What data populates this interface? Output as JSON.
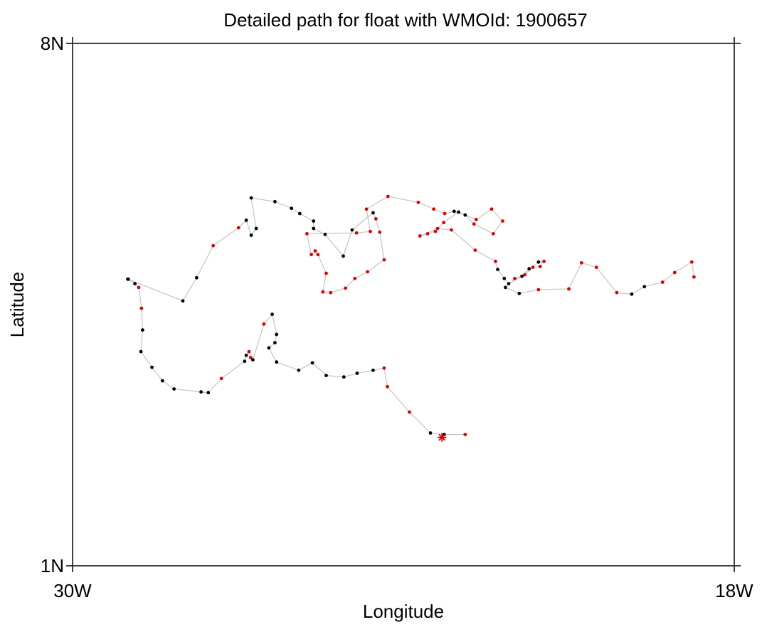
{
  "chart_data": {
    "type": "scatter",
    "title": "Detailed path for float with WMOId: 1900657",
    "xlabel": "Longitude",
    "ylabel": "Latitude",
    "xlim": [
      -30,
      -18
    ],
    "ylim": [
      1,
      8
    ],
    "x_ticks": [
      {
        "value": -30,
        "label": "30W"
      },
      {
        "value": -18,
        "label": "18W"
      }
    ],
    "y_ticks": [
      {
        "value": 8,
        "label": "8N"
      },
      {
        "value": 1,
        "label": "1N"
      }
    ],
    "grid": false,
    "colors": {
      "path_line": "#c8c8c8",
      "point_black": "#000000",
      "point_red": "#e00000",
      "last_position": "#e00000"
    },
    "last_position_marker": "asterisk",
    "series": [
      {
        "values": [
          {
            "lon": -29.0,
            "lat": 4.84,
            "c": "k"
          },
          {
            "lon": -28.87,
            "lat": 4.78,
            "c": "k"
          },
          {
            "lon": -28.8,
            "lat": 4.73,
            "c": "r"
          },
          {
            "lon": -28.75,
            "lat": 4.45,
            "c": "r"
          },
          {
            "lon": -28.73,
            "lat": 4.16,
            "c": "k"
          },
          {
            "lon": -28.76,
            "lat": 3.87,
            "c": "k"
          },
          {
            "lon": -28.56,
            "lat": 3.66,
            "c": "k"
          },
          {
            "lon": -28.37,
            "lat": 3.48,
            "c": "k"
          },
          {
            "lon": -28.16,
            "lat": 3.37,
            "c": "k"
          },
          {
            "lon": -27.67,
            "lat": 3.33,
            "c": "k"
          },
          {
            "lon": -27.54,
            "lat": 3.32,
            "c": "k"
          },
          {
            "lon": -27.3,
            "lat": 3.51,
            "c": "r"
          },
          {
            "lon": -26.88,
            "lat": 3.74,
            "c": "k"
          },
          {
            "lon": -26.85,
            "lat": 3.82,
            "c": "k"
          },
          {
            "lon": -26.8,
            "lat": 3.87,
            "c": "r"
          },
          {
            "lon": -26.77,
            "lat": 3.79,
            "c": "r"
          },
          {
            "lon": -26.73,
            "lat": 3.76,
            "c": "k"
          },
          {
            "lon": -26.53,
            "lat": 4.24,
            "c": "r"
          },
          {
            "lon": -26.38,
            "lat": 4.37,
            "c": "k"
          },
          {
            "lon": -26.3,
            "lat": 4.1,
            "c": "k"
          },
          {
            "lon": -26.33,
            "lat": 3.99,
            "c": "k"
          },
          {
            "lon": -26.44,
            "lat": 3.92,
            "c": "k"
          },
          {
            "lon": -26.3,
            "lat": 3.73,
            "c": "k"
          },
          {
            "lon": -25.9,
            "lat": 3.62,
            "c": "k"
          },
          {
            "lon": -25.65,
            "lat": 3.72,
            "c": "k"
          },
          {
            "lon": -25.4,
            "lat": 3.55,
            "c": "k"
          },
          {
            "lon": -25.08,
            "lat": 3.53,
            "c": "k"
          },
          {
            "lon": -24.84,
            "lat": 3.58,
            "c": "k"
          },
          {
            "lon": -24.55,
            "lat": 3.62,
            "c": "k"
          },
          {
            "lon": -24.35,
            "lat": 3.65,
            "c": "r"
          },
          {
            "lon": -24.29,
            "lat": 3.4,
            "c": "r"
          },
          {
            "lon": -23.89,
            "lat": 3.06,
            "c": "r"
          },
          {
            "lon": -23.51,
            "lat": 2.78,
            "c": "k"
          },
          {
            "lon": -23.26,
            "lat": 2.76,
            "c": "k"
          },
          {
            "lon": -22.88,
            "lat": 2.76,
            "c": "r"
          }
        ]
      },
      {
        "values": [
          {
            "lon": -28.99,
            "lat": 4.84,
            "c": "k"
          },
          {
            "lon": -28.0,
            "lat": 4.55,
            "c": "k"
          },
          {
            "lon": -27.75,
            "lat": 4.86,
            "c": "k"
          },
          {
            "lon": -27.45,
            "lat": 5.29,
            "c": "r"
          },
          {
            "lon": -26.99,
            "lat": 5.53,
            "c": "r"
          },
          {
            "lon": -26.85,
            "lat": 5.63,
            "c": "k"
          },
          {
            "lon": -26.76,
            "lat": 5.43,
            "c": "k"
          },
          {
            "lon": -26.67,
            "lat": 5.52,
            "c": "k"
          },
          {
            "lon": -26.76,
            "lat": 5.93,
            "c": "k"
          },
          {
            "lon": -26.33,
            "lat": 5.88,
            "c": "k"
          },
          {
            "lon": -26.03,
            "lat": 5.79,
            "c": "k"
          },
          {
            "lon": -25.88,
            "lat": 5.72,
            "c": "k"
          },
          {
            "lon": -25.63,
            "lat": 5.62,
            "c": "k"
          },
          {
            "lon": -25.63,
            "lat": 5.52,
            "c": "k"
          },
          {
            "lon": -25.42,
            "lat": 5.44,
            "c": "k"
          },
          {
            "lon": -25.09,
            "lat": 5.15,
            "c": "k"
          },
          {
            "lon": -24.93,
            "lat": 5.5,
            "c": "k"
          },
          {
            "lon": -24.55,
            "lat": 5.73,
            "c": "k"
          },
          {
            "lon": -24.5,
            "lat": 5.65,
            "c": "r"
          },
          {
            "lon": -24.43,
            "lat": 5.47,
            "c": "r"
          },
          {
            "lon": -24.35,
            "lat": 5.1,
            "c": "r"
          },
          {
            "lon": -24.65,
            "lat": 4.94,
            "c": "r"
          },
          {
            "lon": -24.88,
            "lat": 4.85,
            "c": "r"
          },
          {
            "lon": -25.05,
            "lat": 4.72,
            "c": "r"
          },
          {
            "lon": -25.32,
            "lat": 4.66,
            "c": "r"
          },
          {
            "lon": -25.46,
            "lat": 4.67,
            "c": "r"
          },
          {
            "lon": -25.4,
            "lat": 4.92,
            "c": "r"
          },
          {
            "lon": -25.55,
            "lat": 5.17,
            "c": "r"
          },
          {
            "lon": -25.6,
            "lat": 5.22,
            "c": "r"
          },
          {
            "lon": -25.67,
            "lat": 5.17,
            "c": "r"
          },
          {
            "lon": -25.75,
            "lat": 5.45,
            "c": "r"
          },
          {
            "lon": -24.85,
            "lat": 5.46,
            "c": "r"
          },
          {
            "lon": -24.6,
            "lat": 5.48,
            "c": "r"
          },
          {
            "lon": -24.67,
            "lat": 5.78,
            "c": "r"
          },
          {
            "lon": -24.28,
            "lat": 5.95,
            "c": "r"
          },
          {
            "lon": -23.73,
            "lat": 5.87,
            "c": "r"
          },
          {
            "lon": -23.45,
            "lat": 5.78,
            "c": "r"
          },
          {
            "lon": -23.25,
            "lat": 5.72,
            "c": "r"
          },
          {
            "lon": -23.08,
            "lat": 5.75,
            "c": "k"
          },
          {
            "lon": -22.88,
            "lat": 5.7,
            "c": "k"
          },
          {
            "lon": -22.72,
            "lat": 5.58,
            "c": "r"
          },
          {
            "lon": -22.37,
            "lat": 5.45,
            "c": "r"
          },
          {
            "lon": -22.2,
            "lat": 5.62,
            "c": "r"
          },
          {
            "lon": -22.4,
            "lat": 5.78,
            "c": "r"
          },
          {
            "lon": -22.68,
            "lat": 5.64,
            "c": "r"
          },
          {
            "lon": -23.0,
            "lat": 5.74,
            "c": "k"
          },
          {
            "lon": -23.27,
            "lat": 5.6,
            "c": "r"
          },
          {
            "lon": -23.42,
            "lat": 5.48,
            "c": "r"
          },
          {
            "lon": -23.56,
            "lat": 5.45,
            "c": "r"
          },
          {
            "lon": -23.7,
            "lat": 5.42,
            "c": "r"
          },
          {
            "lon": -23.38,
            "lat": 5.52,
            "c": "r"
          },
          {
            "lon": -23.13,
            "lat": 5.5,
            "c": "r"
          },
          {
            "lon": -22.7,
            "lat": 5.23,
            "c": "r"
          },
          {
            "lon": -22.33,
            "lat": 5.08,
            "c": "r"
          },
          {
            "lon": -22.29,
            "lat": 4.97,
            "c": "k"
          },
          {
            "lon": -22.17,
            "lat": 4.85,
            "c": "k"
          },
          {
            "lon": -22.09,
            "lat": 4.78,
            "c": "k"
          },
          {
            "lon": -21.85,
            "lat": 4.88,
            "c": "k"
          },
          {
            "lon": -21.72,
            "lat": 4.98,
            "c": "k"
          },
          {
            "lon": -21.55,
            "lat": 5.07,
            "c": "k"
          },
          {
            "lon": -21.45,
            "lat": 5.08,
            "c": "r"
          },
          {
            "lon": -21.52,
            "lat": 5.01,
            "c": "r"
          },
          {
            "lon": -21.65,
            "lat": 5.0,
            "c": "r"
          },
          {
            "lon": -21.8,
            "lat": 4.9,
            "c": "r"
          },
          {
            "lon": -21.98,
            "lat": 4.85,
            "c": "r"
          },
          {
            "lon": -22.15,
            "lat": 4.73,
            "c": "k"
          },
          {
            "lon": -21.9,
            "lat": 4.65,
            "c": "k"
          },
          {
            "lon": -21.55,
            "lat": 4.7,
            "c": "r"
          },
          {
            "lon": -21.0,
            "lat": 4.71,
            "c": "r"
          },
          {
            "lon": -20.77,
            "lat": 5.06,
            "c": "r"
          },
          {
            "lon": -20.5,
            "lat": 5.0,
            "c": "r"
          },
          {
            "lon": -20.13,
            "lat": 4.66,
            "c": "r"
          },
          {
            "lon": -19.86,
            "lat": 4.64,
            "c": "k"
          },
          {
            "lon": -19.63,
            "lat": 4.74,
            "c": "k"
          },
          {
            "lon": -19.3,
            "lat": 4.8,
            "c": "r"
          },
          {
            "lon": -19.08,
            "lat": 4.93,
            "c": "r"
          },
          {
            "lon": -18.77,
            "lat": 5.07,
            "c": "r"
          },
          {
            "lon": -18.73,
            "lat": 4.87,
            "c": "r"
          }
        ]
      }
    ],
    "last_position": {
      "lon": -23.3,
      "lat": 2.72
    }
  }
}
